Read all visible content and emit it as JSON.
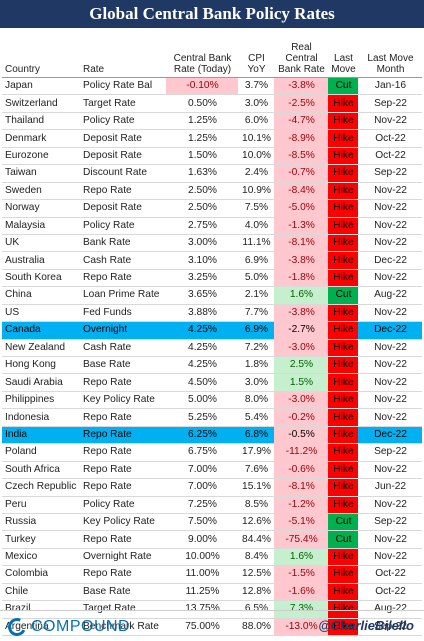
{
  "title": "Global Central Bank Policy Rates",
  "headers": [
    "Country",
    "Rate",
    "Central Bank Rate (Today)",
    "CPI YoY",
    "Real Central Bank Rate",
    "Last Move",
    "Last Move Month"
  ],
  "rows": [
    {
      "country": "Japan",
      "rate": "Policy Rate Bal",
      "cb": "-0.10%",
      "cpi": "3.7%",
      "real": "-3.8%",
      "move": "Cut",
      "month": "Jan-16",
      "hl": false,
      "cb_neg": true
    },
    {
      "country": "Switzerland",
      "rate": "Target Rate",
      "cb": "0.50%",
      "cpi": "3.0%",
      "real": "-2.5%",
      "move": "Hike",
      "month": "Sep-22",
      "hl": false,
      "cb_neg": false
    },
    {
      "country": "Thailand",
      "rate": "Policy Rate",
      "cb": "1.25%",
      "cpi": "6.0%",
      "real": "-4.7%",
      "move": "Hike",
      "month": "Nov-22",
      "hl": false,
      "cb_neg": false
    },
    {
      "country": "Denmark",
      "rate": "Deposit Rate",
      "cb": "1.25%",
      "cpi": "10.1%",
      "real": "-8.9%",
      "move": "Hike",
      "month": "Oct-22",
      "hl": false,
      "cb_neg": false
    },
    {
      "country": "Eurozone",
      "rate": "Deposit Rate",
      "cb": "1.50%",
      "cpi": "10.0%",
      "real": "-8.5%",
      "move": "Hike",
      "month": "Oct-22",
      "hl": false,
      "cb_neg": false
    },
    {
      "country": "Taiwan",
      "rate": "Discount Rate",
      "cb": "1.63%",
      "cpi": "2.4%",
      "real": "-0.7%",
      "move": "Hike",
      "month": "Sep-22",
      "hl": false,
      "cb_neg": false
    },
    {
      "country": "Sweden",
      "rate": "Repo Rate",
      "cb": "2.50%",
      "cpi": "10.9%",
      "real": "-8.4%",
      "move": "Hike",
      "month": "Nov-22",
      "hl": false,
      "cb_neg": false
    },
    {
      "country": "Norway",
      "rate": "Deposit Rate",
      "cb": "2.50%",
      "cpi": "7.5%",
      "real": "-5.0%",
      "move": "Hike",
      "month": "Nov-22",
      "hl": false,
      "cb_neg": false
    },
    {
      "country": "Malaysia",
      "rate": "Policy Rate",
      "cb": "2.75%",
      "cpi": "4.0%",
      "real": "-1.3%",
      "move": "Hike",
      "month": "Nov-22",
      "hl": false,
      "cb_neg": false
    },
    {
      "country": "UK",
      "rate": "Bank Rate",
      "cb": "3.00%",
      "cpi": "11.1%",
      "real": "-8.1%",
      "move": "Hike",
      "month": "Nov-22",
      "hl": false,
      "cb_neg": false
    },
    {
      "country": "Australia",
      "rate": "Cash Rate",
      "cb": "3.10%",
      "cpi": "6.9%",
      "real": "-3.8%",
      "move": "Hike",
      "month": "Dec-22",
      "hl": false,
      "cb_neg": false
    },
    {
      "country": "South Korea",
      "rate": "Repo Rate",
      "cb": "3.25%",
      "cpi": "5.0%",
      "real": "-1.8%",
      "move": "Hike",
      "month": "Nov-22",
      "hl": false,
      "cb_neg": false
    },
    {
      "country": "China",
      "rate": "Loan Prime Rate",
      "cb": "3.65%",
      "cpi": "2.1%",
      "real": "1.6%",
      "move": "Cut",
      "month": "Aug-22",
      "hl": false,
      "cb_neg": false
    },
    {
      "country": "US",
      "rate": "Fed Funds",
      "cb": "3.88%",
      "cpi": "7.7%",
      "real": "-3.8%",
      "move": "Hike",
      "month": "Nov-22",
      "hl": false,
      "cb_neg": false
    },
    {
      "country": "Canada",
      "rate": "Overnight",
      "cb": "4.25%",
      "cpi": "6.9%",
      "real": "-2.7%",
      "move": "Hike",
      "month": "Dec-22",
      "hl": true,
      "cb_neg": false
    },
    {
      "country": "New Zealand",
      "rate": "Cash Rate",
      "cb": "4.25%",
      "cpi": "7.2%",
      "real": "-3.0%",
      "move": "Hike",
      "month": "Nov-22",
      "hl": false,
      "cb_neg": false
    },
    {
      "country": "Hong Kong",
      "rate": "Base Rate",
      "cb": "4.25%",
      "cpi": "1.8%",
      "real": "2.5%",
      "move": "Hike",
      "month": "Nov-22",
      "hl": false,
      "cb_neg": false
    },
    {
      "country": "Saudi Arabia",
      "rate": "Repo Rate",
      "cb": "4.50%",
      "cpi": "3.0%",
      "real": "1.5%",
      "move": "Hike",
      "month": "Nov-22",
      "hl": false,
      "cb_neg": false
    },
    {
      "country": "Philippines",
      "rate": "Key Policy Rate",
      "cb": "5.00%",
      "cpi": "8.0%",
      "real": "-3.0%",
      "move": "Hike",
      "month": "Nov-22",
      "hl": false,
      "cb_neg": false
    },
    {
      "country": "Indonesia",
      "rate": "Repo Rate",
      "cb": "5.25%",
      "cpi": "5.4%",
      "real": "-0.2%",
      "move": "Hike",
      "month": "Nov-22",
      "hl": false,
      "cb_neg": false
    },
    {
      "country": "India",
      "rate": "Repo Rate",
      "cb": "6.25%",
      "cpi": "6.8%",
      "real": "-0.5%",
      "move": "Hike",
      "month": "Dec-22",
      "hl": true,
      "cb_neg": false
    },
    {
      "country": "Poland",
      "rate": "Repo Rate",
      "cb": "6.75%",
      "cpi": "17.9%",
      "real": "-11.2%",
      "move": "Hike",
      "month": "Sep-22",
      "hl": false,
      "cb_neg": false
    },
    {
      "country": "South Africa",
      "rate": "Repo Rate",
      "cb": "7.00%",
      "cpi": "7.6%",
      "real": "-0.6%",
      "move": "Hike",
      "month": "Nov-22",
      "hl": false,
      "cb_neg": false
    },
    {
      "country": "Czech Republic",
      "rate": "Repo Rate",
      "cb": "7.00%",
      "cpi": "15.1%",
      "real": "-8.1%",
      "move": "Hike",
      "month": "Jun-22",
      "hl": false,
      "cb_neg": false
    },
    {
      "country": "Peru",
      "rate": "Policy Rate",
      "cb": "7.25%",
      "cpi": "8.5%",
      "real": "-1.2%",
      "move": "Hike",
      "month": "Nov-22",
      "hl": false,
      "cb_neg": false
    },
    {
      "country": "Russia",
      "rate": "Key Policy Rate",
      "cb": "7.50%",
      "cpi": "12.6%",
      "real": "-5.1%",
      "move": "Cut",
      "month": "Sep-22",
      "hl": false,
      "cb_neg": false
    },
    {
      "country": "Turkey",
      "rate": "Repo Rate",
      "cb": "9.00%",
      "cpi": "84.4%",
      "real": "-75.4%",
      "move": "Cut",
      "month": "Nov-22",
      "hl": false,
      "cb_neg": false
    },
    {
      "country": "Mexico",
      "rate": "Overnight Rate",
      "cb": "10.00%",
      "cpi": "8.4%",
      "real": "1.6%",
      "move": "Hike",
      "month": "Nov-22",
      "hl": false,
      "cb_neg": false
    },
    {
      "country": "Colombia",
      "rate": "Repo Rate",
      "cb": "11.00%",
      "cpi": "12.5%",
      "real": "-1.5%",
      "move": "Hike",
      "month": "Oct-22",
      "hl": false,
      "cb_neg": false
    },
    {
      "country": "Chile",
      "rate": "Base Rate",
      "cb": "11.25%",
      "cpi": "12.8%",
      "real": "-1.6%",
      "move": "Hike",
      "month": "Oct-22",
      "hl": false,
      "cb_neg": false
    },
    {
      "country": "Brazil",
      "rate": "Target Rate",
      "cb": "13.75%",
      "cpi": "6.5%",
      "real": "7.3%",
      "move": "Hike",
      "month": "Aug-22",
      "hl": false,
      "cb_neg": false
    },
    {
      "country": "Argentina",
      "rate": "Benchmark Rate",
      "cb": "75.00%",
      "cpi": "88.0%",
      "real": "-13.0%",
      "move": "Hike",
      "month": "Sep-22",
      "hl": false,
      "cb_neg": false
    }
  ],
  "colors": {
    "title_bg": "#1f3864",
    "hike": "#ff0000",
    "cut": "#00b050",
    "highlight": "#00b0f0",
    "neg_bg": "#ffc7ce",
    "pos_bg": "#c6efce"
  },
  "footer": {
    "logo_text": "COMPOUND",
    "handle": "@CharlieBilello"
  }
}
